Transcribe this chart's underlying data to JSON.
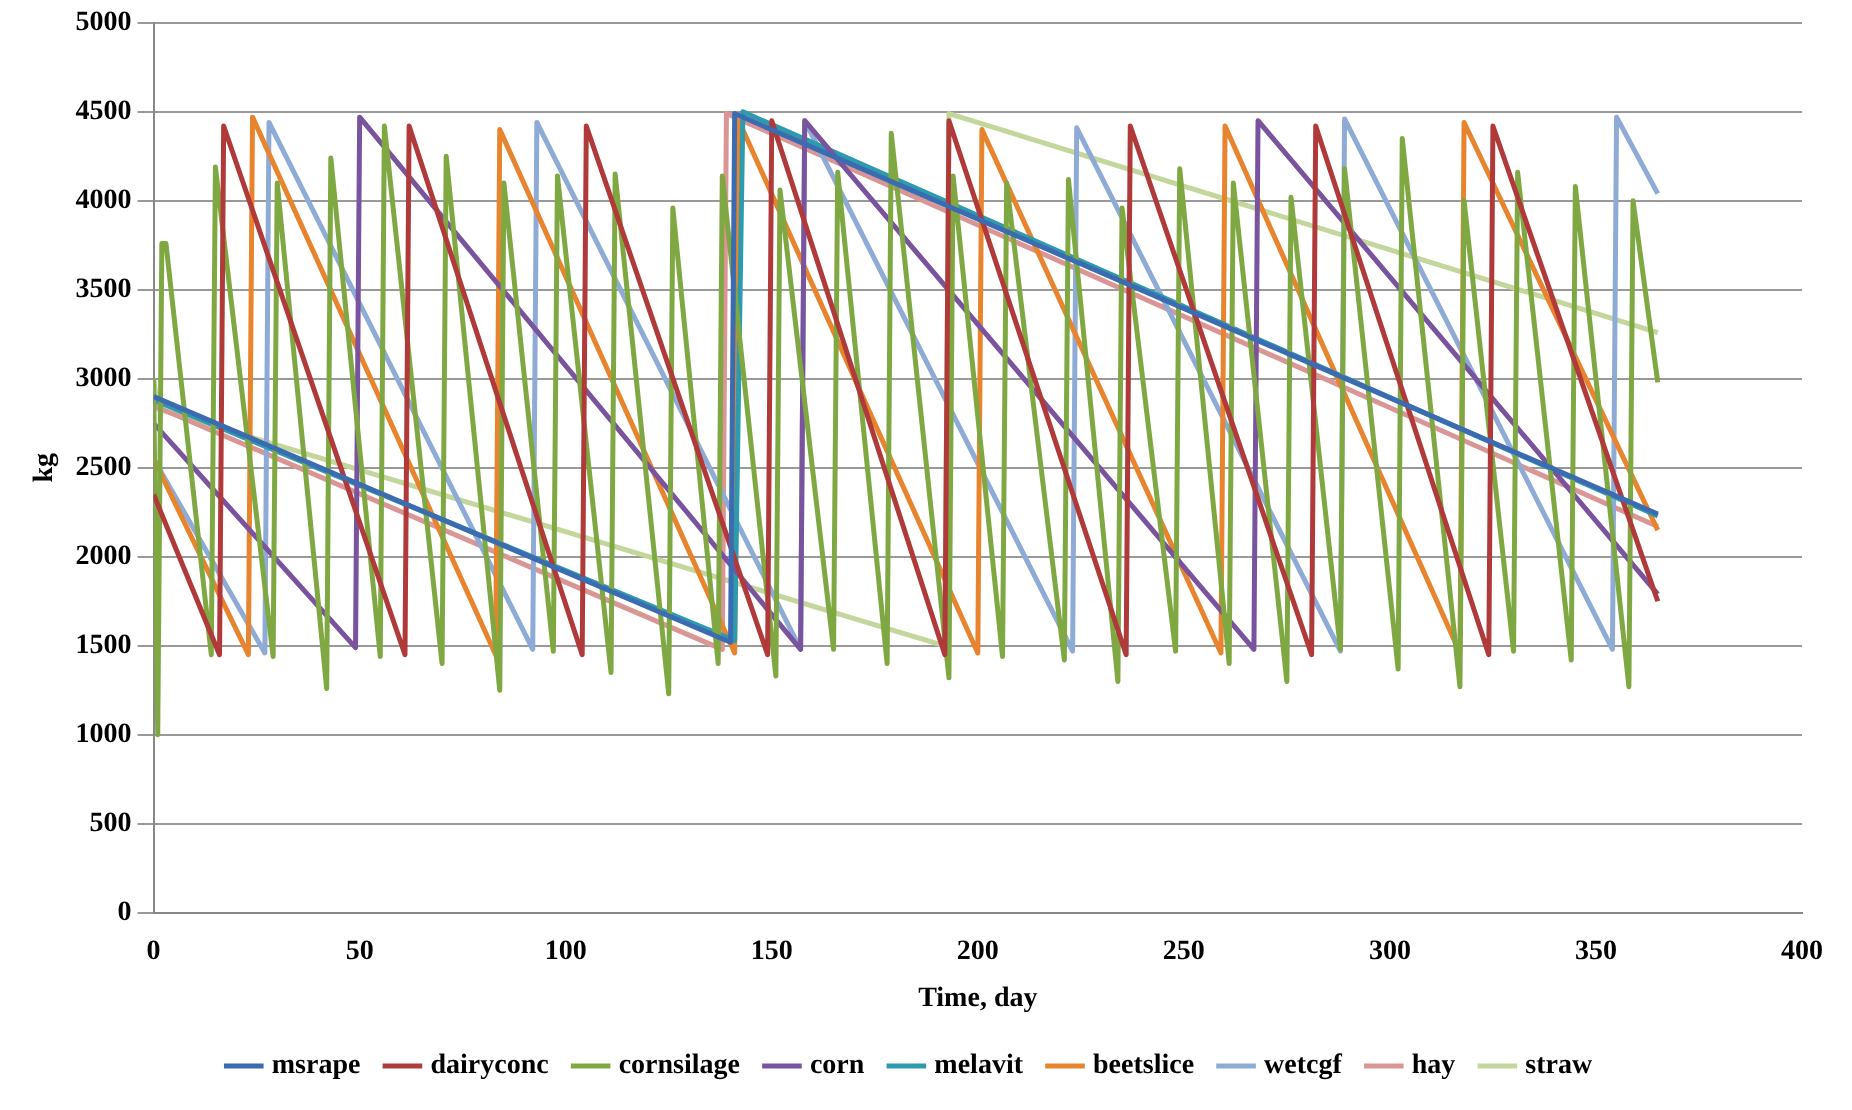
{
  "chart_data": {
    "type": "line",
    "xlabel": "Time, day",
    "ylabel": "kg",
    "xlim": [
      0,
      400
    ],
    "xticks": [
      0,
      50,
      100,
      150,
      200,
      250,
      300,
      350,
      400
    ],
    "ylim": [
      0,
      5000
    ],
    "yticks": [
      0,
      500,
      1000,
      1500,
      2000,
      2500,
      3000,
      3500,
      4000,
      4500,
      5000
    ],
    "grid": "y",
    "legend": "bottom",
    "marker": "none",
    "line_style": "solid",
    "series": [
      {
        "name": "msrape",
        "color": "#3b6bb0",
        "x": [
          0,
          140,
          141,
          365
        ],
        "values": [
          2900,
          1520,
          4490,
          2240
        ]
      },
      {
        "name": "dairyconc",
        "color": "#b03a3a",
        "x": [
          0,
          16,
          17,
          61,
          62,
          104,
          105,
          149,
          150,
          192,
          193,
          236,
          237,
          281,
          282,
          324,
          325,
          365
        ],
        "values": [
          2350,
          1450,
          4420,
          1450,
          4420,
          1450,
          4420,
          1450,
          4450,
          1450,
          4450,
          1450,
          4420,
          1450,
          4420,
          1450,
          4420,
          1750
        ]
      },
      {
        "name": "cornsilage",
        "color": "#7fa843",
        "x": [
          0,
          1,
          2,
          3,
          14,
          15,
          29,
          30,
          42,
          43,
          55,
          56,
          70,
          71,
          84,
          85,
          97,
          98,
          111,
          112,
          125,
          126,
          137,
          138,
          151,
          152,
          165,
          166,
          178,
          179,
          193,
          194,
          206,
          207,
          221,
          222,
          234,
          235,
          248,
          249,
          261,
          262,
          275,
          276,
          288,
          289,
          302,
          303,
          317,
          318,
          330,
          331,
          344,
          345,
          358,
          359,
          365
        ],
        "values": [
          3000,
          1000,
          3760,
          3760,
          1450,
          4190,
          1440,
          4100,
          1260,
          4240,
          1440,
          4420,
          1400,
          4250,
          1250,
          4100,
          1470,
          4140,
          1350,
          4150,
          1230,
          3960,
          1400,
          4140,
          1330,
          4060,
          1480,
          4160,
          1400,
          4380,
          1320,
          4140,
          1440,
          4100,
          1420,
          4120,
          1300,
          3960,
          1470,
          4180,
          1400,
          4100,
          1300,
          4020,
          1480,
          4180,
          1370,
          4350,
          1270,
          4000,
          1470,
          4160,
          1420,
          4080,
          1270,
          4000,
          2980
        ]
      },
      {
        "name": "corn",
        "color": "#7a539e",
        "x": [
          0,
          49,
          50,
          157,
          158,
          267,
          268,
          365
        ],
        "values": [
          2750,
          1490,
          4470,
          1480,
          4450,
          1480,
          4450,
          1790
        ]
      },
      {
        "name": "melavit",
        "color": "#2e9aae",
        "x": [
          0,
          141,
          143,
          365
        ],
        "values": [
          2880,
          1530,
          4500,
          2230
        ]
      },
      {
        "name": "beetslice",
        "color": "#e8832e",
        "x": [
          0,
          23,
          24,
          83,
          84,
          141,
          142,
          200,
          201,
          259,
          260,
          317,
          318,
          365
        ],
        "values": [
          2550,
          1450,
          4470,
          1450,
          4400,
          1460,
          4450,
          1460,
          4400,
          1460,
          4420,
          1460,
          4440,
          2150
        ]
      },
      {
        "name": "wetcgf",
        "color": "#8eabd6",
        "x": [
          0,
          27,
          28,
          92,
          93,
          157,
          158,
          223,
          224,
          288,
          289,
          354,
          355,
          365
        ],
        "values": [
          2550,
          1460,
          4440,
          1480,
          4440,
          1480,
          4450,
          1470,
          4410,
          1470,
          4460,
          1480,
          4470,
          4040
        ]
      },
      {
        "name": "hay",
        "color": "#d99694",
        "x": [
          0,
          138,
          139,
          365
        ],
        "values": [
          2850,
          1480,
          4490,
          2170
        ]
      },
      {
        "name": "straw",
        "color": "#c3d69b",
        "x": [
          0,
          1,
          192,
          193,
          365
        ],
        "values": [
          3000,
          2830,
          1500,
          4490,
          3260
        ]
      }
    ]
  }
}
